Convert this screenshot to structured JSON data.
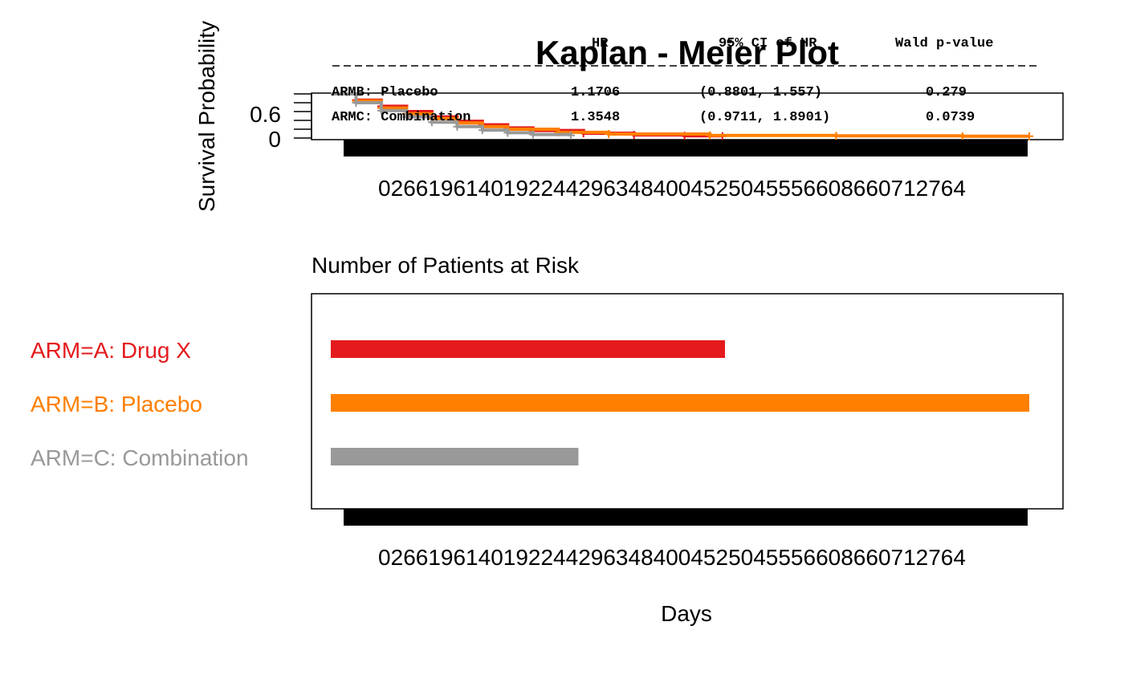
{
  "chart_data": [
    {
      "type": "line",
      "title": "Kaplan - Meier Plot",
      "xlabel": "",
      "ylabel": "Survival Probability",
      "y_ticks": [
        "0",
        "0.6"
      ],
      "x_tick_text": "02661961401922442963484004525045556608660712764",
      "xlim": [
        0,
        2764
      ],
      "ylim": [
        0,
        1
      ],
      "series": [
        {
          "name": "ARM=A: Drug X",
          "color": "#e41a1c",
          "x": [
            0,
            100,
            200,
            300,
            400,
            500,
            600,
            700,
            800,
            1000,
            1200,
            1400,
            1550
          ],
          "y": [
            1.0,
            0.86,
            0.72,
            0.6,
            0.48,
            0.38,
            0.3,
            0.23,
            0.17,
            0.11,
            0.07,
            0.05,
            0.04
          ]
        },
        {
          "name": "ARM=B: Placebo",
          "color": "#ff7f00",
          "x": [
            0,
            100,
            200,
            300,
            400,
            500,
            600,
            700,
            900,
            1100,
            1500,
            2000,
            2500,
            2764
          ],
          "y": [
            1.0,
            0.84,
            0.68,
            0.55,
            0.44,
            0.34,
            0.26,
            0.2,
            0.13,
            0.09,
            0.06,
            0.05,
            0.04,
            0.04
          ]
        },
        {
          "name": "ARM=C: Combination",
          "color": "#999999",
          "x": [
            0,
            100,
            200,
            300,
            400,
            500,
            600,
            700,
            800,
            950
          ],
          "y": [
            1.0,
            0.8,
            0.62,
            0.48,
            0.36,
            0.26,
            0.18,
            0.12,
            0.08,
            0.06
          ]
        }
      ],
      "hr_table": {
        "headers": [
          "HR",
          "95% CI of HR",
          "Wald p-value"
        ],
        "rows": [
          {
            "arm": "ARMB: Placebo",
            "hr": "1.1706",
            "ci": "(0.8801, 1.557)",
            "p": "0.279"
          },
          {
            "arm": "ARMC: Combination",
            "hr": "1.3548",
            "ci": "(0.9711, 1.8901)",
            "p": "0.0739"
          }
        ]
      }
    },
    {
      "type": "table",
      "title": "Number of Patients at Risk",
      "xlabel": "Days",
      "x_tick_text": "02661961401922442963484004525045556608660712764",
      "xlim": [
        0,
        2764
      ],
      "rows": [
        {
          "label": "ARM=A: Drug X",
          "color": "#e41a1c",
          "end_day": 1560
        },
        {
          "label": "ARM=B: Placebo",
          "color": "#ff7f00",
          "end_day": 2764
        },
        {
          "label": "ARM=C: Combination",
          "color": "#999999",
          "end_day": 980
        }
      ]
    }
  ]
}
